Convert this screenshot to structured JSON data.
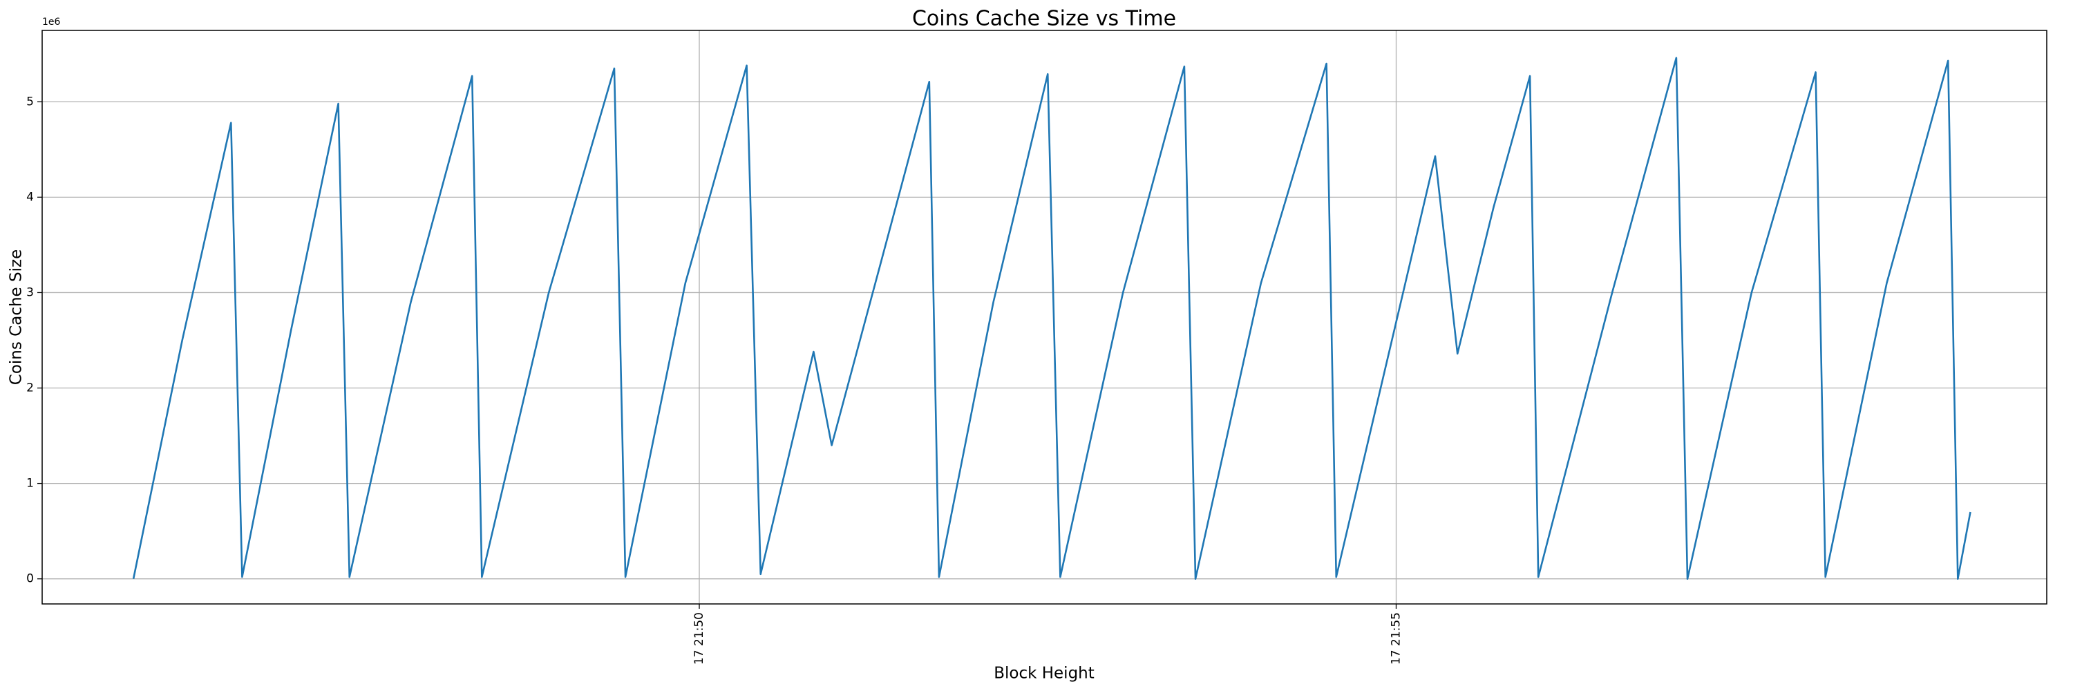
{
  "chart_data": {
    "type": "line",
    "title": "Coins Cache Size vs Time",
    "x_label": "Block Height",
    "y_label": "Coins Cache Size",
    "y_offset_label": "1e6",
    "color": "#1f77b4",
    "grid": true,
    "x": [
      1305.94,
      1306.29,
      1306.64,
      1306.72,
      1307.07,
      1307.41,
      1307.49,
      1307.93,
      1308.37,
      1308.44,
      1308.92,
      1309.39,
      1309.47,
      1309.9,
      1310.34,
      1310.44,
      1310.82,
      1310.95,
      1311.3,
      1311.65,
      1311.72,
      1312.11,
      1312.5,
      1312.59,
      1313.04,
      1313.48,
      1313.56,
      1314.03,
      1314.5,
      1314.57,
      1315.28,
      1315.44,
      1315.7,
      1315.96,
      1316.02,
      1316.55,
      1317.01,
      1317.09,
      1317.55,
      1318.01,
      1318.08,
      1318.52,
      1318.96,
      1319.03,
      1319.12
    ],
    "values": [
      0,
      2.5,
      4.78,
      0.02,
      2.6,
      4.98,
      0.02,
      2.9,
      5.27,
      0.02,
      3.0,
      5.35,
      0.02,
      3.1,
      5.38,
      0.05,
      2.38,
      1.4,
      3.3,
      5.21,
      0.02,
      2.9,
      5.29,
      0.02,
      3.0,
      5.37,
      0,
      3.1,
      5.4,
      0.02,
      4.43,
      2.36,
      3.9,
      5.27,
      0.02,
      3.0,
      5.46,
      0,
      3.0,
      5.31,
      0.02,
      3.1,
      5.43,
      0,
      0.7
    ],
    "xlim": [
      1305.285,
      1319.668
    ],
    "xticks": [
      {
        "value": 1310,
        "label": "17 21:50"
      },
      {
        "value": 1315,
        "label": "17 21:55"
      }
    ],
    "ylim": [
      -0.263,
      5.748
    ],
    "yticks": [
      0,
      1,
      2,
      3,
      4,
      5
    ]
  }
}
